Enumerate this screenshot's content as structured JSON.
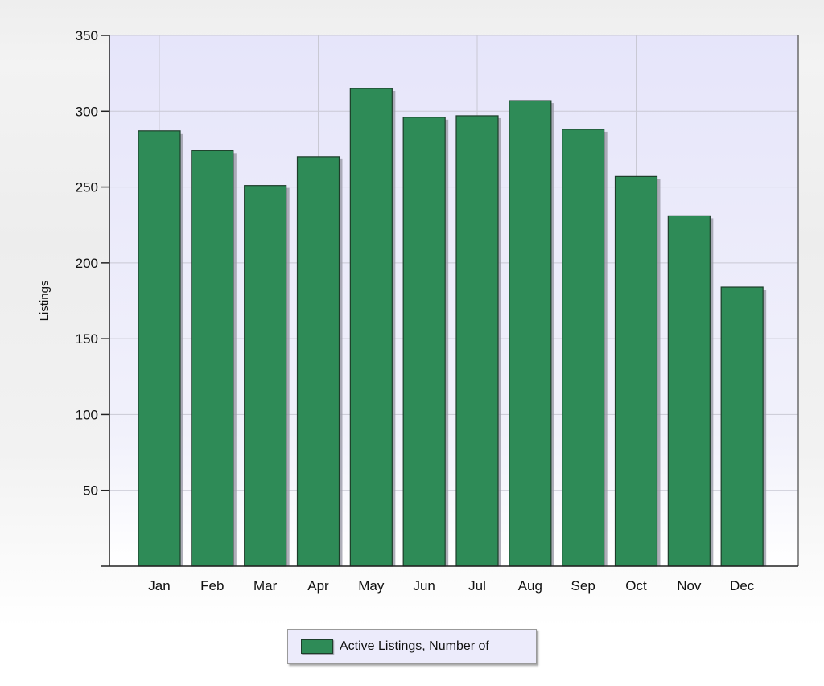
{
  "chart_data": {
    "type": "bar",
    "title": "",
    "xlabel": "",
    "ylabel": "Listings",
    "categories": [
      "Jan",
      "Feb",
      "Mar",
      "Apr",
      "May",
      "Jun",
      "Jul",
      "Aug",
      "Sep",
      "Oct",
      "Nov",
      "Dec"
    ],
    "series": [
      {
        "name": "Active Listings, Number of",
        "color": "#2e8b57",
        "values": [
          287,
          274,
          251,
          270,
          315,
          296,
          297,
          307,
          288,
          257,
          231,
          184
        ]
      }
    ],
    "ylim": [
      0,
      350
    ],
    "yticks": [
      50,
      100,
      150,
      200,
      250,
      300,
      350
    ],
    "grid": true,
    "legend_position": "bottom",
    "plot_background": "#e9e8fa"
  },
  "legend": {
    "label": "Active Listings, Number of"
  }
}
